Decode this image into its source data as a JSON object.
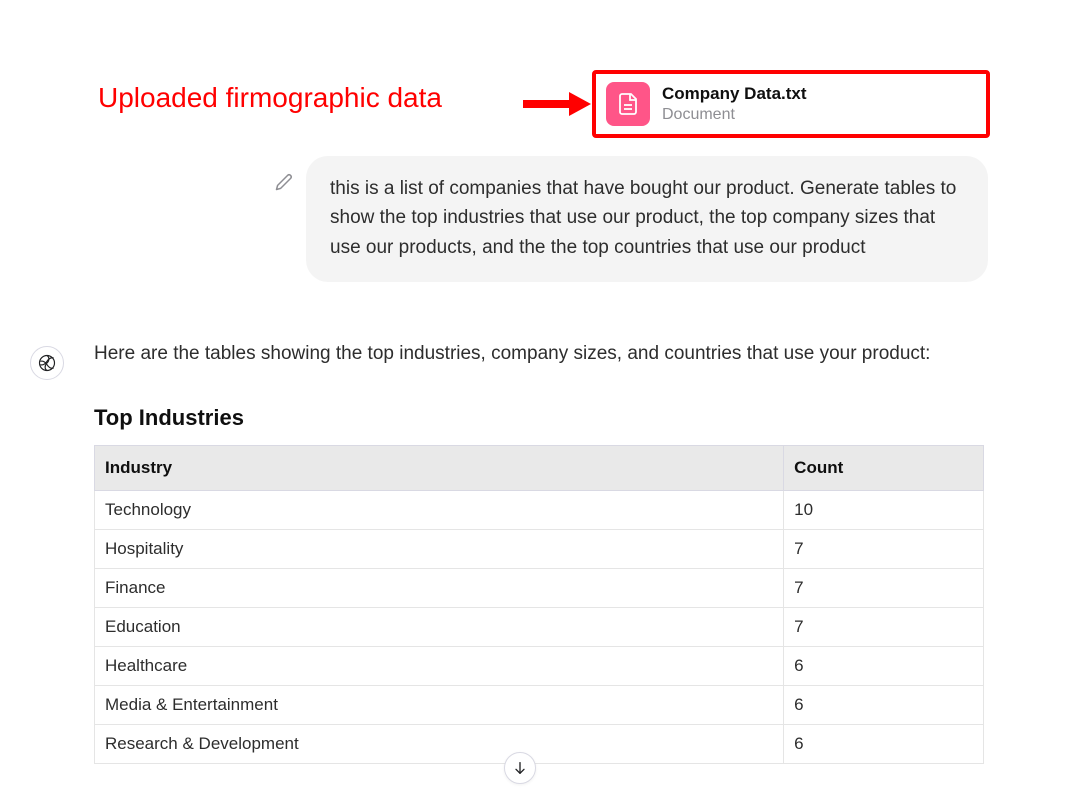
{
  "annotation": {
    "label": "Uploaded firmographic data",
    "text_color": "#ff0000",
    "border_color": "#ff0000",
    "arrow_color": "#ff0000"
  },
  "attachment": {
    "filename": "Company Data.txt",
    "type_label": "Document",
    "icon_bg": "#ff5588",
    "icon_fg": "#ffffff"
  },
  "user_message": {
    "text": "this is a list of companies that have bought our product. Generate tables to show the top industries that use our product, the top company sizes that use our products, and the the top countries that use our product"
  },
  "assistant": {
    "intro": "Here are the tables showing the top industries, company sizes, and countries that use your product:",
    "section_title": "Top Industries",
    "table": {
      "columns": [
        "Industry",
        "Count"
      ],
      "rows": [
        [
          "Technology",
          "10"
        ],
        [
          "Hospitality",
          "7"
        ],
        [
          "Finance",
          "7"
        ],
        [
          "Education",
          "7"
        ],
        [
          "Healthcare",
          "6"
        ],
        [
          "Media & Entertainment",
          "6"
        ],
        [
          "Research & Development",
          "6"
        ]
      ],
      "header_bg": "#e9e9e9",
      "border_color": "#d9d9e3"
    }
  }
}
